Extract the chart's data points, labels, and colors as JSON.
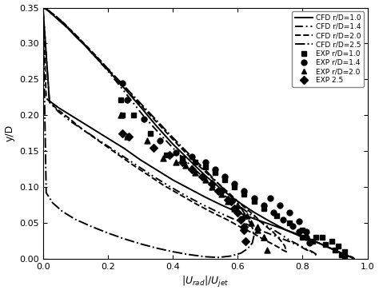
{
  "xlabel": "|U$_{rad}$|/U$_{jet}$",
  "ylabel": "y/D",
  "xlim": [
    0,
    1.0
  ],
  "ylim": [
    0,
    0.35
  ],
  "xticks": [
    0,
    0.2,
    0.4,
    0.6,
    0.8,
    1.0
  ],
  "yticks": [
    0,
    0.05,
    0.1,
    0.15,
    0.2,
    0.25,
    0.3,
    0.35
  ],
  "cfd_r10_x": [
    0.0,
    0.01,
    0.02,
    0.04,
    0.06,
    0.08,
    0.1,
    0.13,
    0.16,
    0.2,
    0.25,
    0.3,
    0.35,
    0.4,
    0.45,
    0.5,
    0.55,
    0.6,
    0.65,
    0.7,
    0.75,
    0.8,
    0.85,
    0.88,
    0.9,
    0.92,
    0.93,
    0.94,
    0.95,
    0.955,
    0.96,
    0.95,
    0.94,
    0.92,
    0.9,
    0.88,
    0.85,
    0.82,
    0.8,
    0.75,
    0.7,
    0.65,
    0.6,
    0.55,
    0.5,
    0.45,
    0.4,
    0.35,
    0.3,
    0.25,
    0.2,
    0.15,
    0.1,
    0.05,
    0.02,
    0.0
  ],
  "cfd_r10_y": [
    0.35,
    0.348,
    0.344,
    0.336,
    0.328,
    0.32,
    0.31,
    0.297,
    0.282,
    0.263,
    0.238,
    0.212,
    0.185,
    0.16,
    0.138,
    0.116,
    0.097,
    0.08,
    0.065,
    0.052,
    0.04,
    0.03,
    0.022,
    0.016,
    0.012,
    0.008,
    0.006,
    0.004,
    0.003,
    0.002,
    0.0,
    0.002,
    0.004,
    0.008,
    0.012,
    0.016,
    0.022,
    0.028,
    0.032,
    0.04,
    0.048,
    0.056,
    0.065,
    0.075,
    0.086,
    0.098,
    0.11,
    0.124,
    0.138,
    0.154,
    0.168,
    0.182,
    0.196,
    0.21,
    0.22,
    0.35
  ],
  "cfd_r14_x": [
    0.0,
    0.01,
    0.02,
    0.04,
    0.06,
    0.09,
    0.12,
    0.15,
    0.19,
    0.23,
    0.27,
    0.31,
    0.36,
    0.41,
    0.46,
    0.51,
    0.56,
    0.61,
    0.65,
    0.69,
    0.73,
    0.76,
    0.79,
    0.81,
    0.83,
    0.84,
    0.845,
    0.84,
    0.83,
    0.81,
    0.79,
    0.76,
    0.72,
    0.68,
    0.64,
    0.59,
    0.54,
    0.49,
    0.44,
    0.39,
    0.34,
    0.29,
    0.24,
    0.19,
    0.14,
    0.09,
    0.05,
    0.02,
    0.0
  ],
  "cfd_r14_y": [
    0.35,
    0.348,
    0.345,
    0.338,
    0.33,
    0.317,
    0.303,
    0.287,
    0.267,
    0.245,
    0.222,
    0.199,
    0.174,
    0.15,
    0.128,
    0.107,
    0.088,
    0.072,
    0.058,
    0.046,
    0.035,
    0.026,
    0.019,
    0.014,
    0.01,
    0.007,
    0.004,
    0.006,
    0.009,
    0.013,
    0.018,
    0.024,
    0.031,
    0.038,
    0.046,
    0.055,
    0.065,
    0.076,
    0.088,
    0.101,
    0.115,
    0.13,
    0.145,
    0.16,
    0.175,
    0.19,
    0.204,
    0.218,
    0.35
  ],
  "cfd_r20_x": [
    0.0,
    0.01,
    0.02,
    0.04,
    0.07,
    0.1,
    0.14,
    0.18,
    0.22,
    0.27,
    0.32,
    0.37,
    0.42,
    0.47,
    0.52,
    0.57,
    0.61,
    0.65,
    0.68,
    0.71,
    0.73,
    0.745,
    0.75,
    0.74,
    0.73,
    0.71,
    0.68,
    0.65,
    0.61,
    0.57,
    0.52,
    0.47,
    0.42,
    0.37,
    0.32,
    0.27,
    0.22,
    0.17,
    0.12,
    0.08,
    0.04,
    0.01,
    0.0
  ],
  "cfd_r20_y": [
    0.35,
    0.348,
    0.345,
    0.338,
    0.326,
    0.312,
    0.294,
    0.275,
    0.254,
    0.229,
    0.205,
    0.181,
    0.157,
    0.134,
    0.113,
    0.093,
    0.076,
    0.061,
    0.048,
    0.037,
    0.027,
    0.018,
    0.01,
    0.012,
    0.015,
    0.02,
    0.027,
    0.035,
    0.044,
    0.054,
    0.065,
    0.077,
    0.09,
    0.103,
    0.118,
    0.133,
    0.149,
    0.165,
    0.181,
    0.196,
    0.21,
    0.224,
    0.35
  ],
  "cfd_r25_x": [
    0.0,
    0.01,
    0.02,
    0.04,
    0.07,
    0.11,
    0.15,
    0.2,
    0.25,
    0.3,
    0.35,
    0.4,
    0.45,
    0.5,
    0.54,
    0.58,
    0.61,
    0.63,
    0.645,
    0.65,
    0.645,
    0.63,
    0.61,
    0.58,
    0.54,
    0.5,
    0.45,
    0.4,
    0.35,
    0.3,
    0.25,
    0.2,
    0.15,
    0.1,
    0.06,
    0.03,
    0.01,
    0.0
  ],
  "cfd_r25_y": [
    0.35,
    0.348,
    0.345,
    0.337,
    0.324,
    0.307,
    0.288,
    0.265,
    0.241,
    0.217,
    0.193,
    0.169,
    0.146,
    0.124,
    0.105,
    0.087,
    0.071,
    0.057,
    0.044,
    0.032,
    0.022,
    0.014,
    0.008,
    0.004,
    0.002,
    0.003,
    0.006,
    0.01,
    0.015,
    0.021,
    0.028,
    0.036,
    0.045,
    0.055,
    0.066,
    0.078,
    0.092,
    0.35
  ],
  "exp_r10_x": [
    0.24,
    0.245,
    0.28,
    0.33,
    0.38,
    0.43,
    0.47,
    0.5,
    0.53,
    0.56,
    0.59,
    0.62,
    0.65,
    0.68,
    0.72,
    0.76,
    0.8,
    0.84,
    0.87,
    0.9,
    0.92,
    0.93,
    0.93,
    0.91,
    0.89,
    0.86,
    0.83,
    0.8
  ],
  "exp_r10_y": [
    0.222,
    0.2,
    0.2,
    0.175,
    0.145,
    0.14,
    0.135,
    0.128,
    0.12,
    0.11,
    0.1,
    0.09,
    0.08,
    0.07,
    0.06,
    0.05,
    0.04,
    0.03,
    0.02,
    0.012,
    0.006,
    0.002,
    0.01,
    0.018,
    0.025,
    0.03,
    0.025,
    0.03
  ],
  "exp_r14_x": [
    0.245,
    0.26,
    0.31,
    0.36,
    0.41,
    0.46,
    0.5,
    0.53,
    0.56,
    0.59,
    0.62,
    0.65,
    0.68,
    0.71,
    0.74,
    0.77,
    0.79,
    0.81,
    0.82,
    0.81,
    0.79,
    0.76,
    0.73,
    0.7
  ],
  "exp_r14_y": [
    0.245,
    0.222,
    0.195,
    0.165,
    0.148,
    0.143,
    0.135,
    0.125,
    0.115,
    0.105,
    0.095,
    0.085,
    0.075,
    0.065,
    0.055,
    0.046,
    0.038,
    0.03,
    0.022,
    0.038,
    0.052,
    0.065,
    0.075,
    0.085
  ],
  "exp_r20_x": [
    0.24,
    0.26,
    0.32,
    0.37,
    0.41,
    0.44,
    0.47,
    0.5,
    0.52,
    0.55,
    0.57,
    0.59,
    0.62,
    0.64,
    0.66,
    0.68,
    0.69,
    0.68,
    0.66,
    0.63,
    0.6
  ],
  "exp_r20_y": [
    0.2,
    0.17,
    0.165,
    0.14,
    0.135,
    0.13,
    0.12,
    0.11,
    0.1,
    0.09,
    0.08,
    0.07,
    0.06,
    0.05,
    0.04,
    0.03,
    0.012,
    0.03,
    0.045,
    0.06,
    0.075
  ],
  "exp_r25_x": [
    0.245,
    0.265,
    0.34,
    0.39,
    0.43,
    0.46,
    0.49,
    0.52,
    0.54,
    0.57,
    0.59,
    0.61,
    0.62,
    0.625,
    0.62,
    0.6,
    0.58,
    0.55
  ],
  "exp_r25_y": [
    0.175,
    0.17,
    0.155,
    0.145,
    0.135,
    0.125,
    0.115,
    0.105,
    0.095,
    0.082,
    0.07,
    0.055,
    0.04,
    0.025,
    0.045,
    0.065,
    0.08,
    0.095
  ],
  "color": "#000000",
  "background_color": "#ffffff"
}
